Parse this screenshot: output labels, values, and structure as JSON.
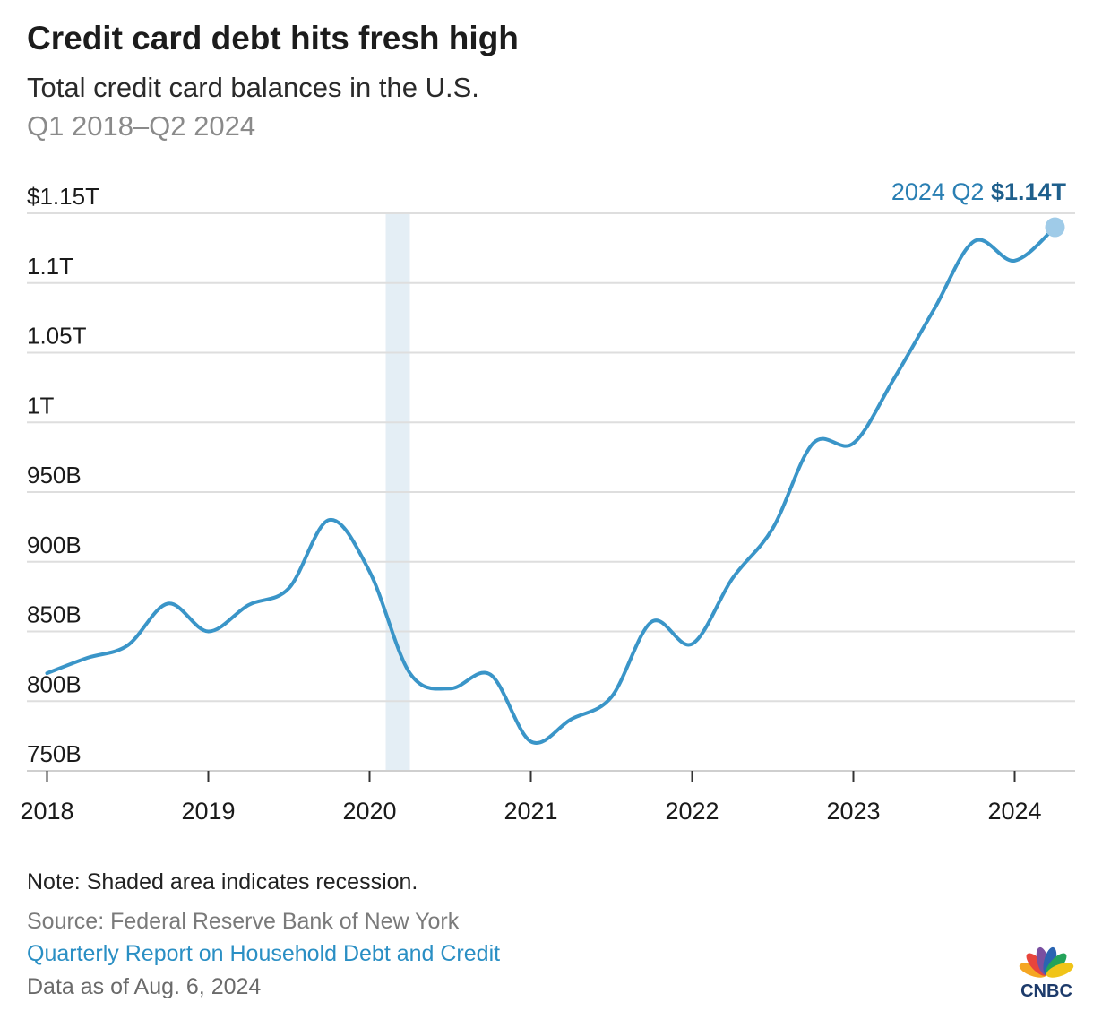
{
  "header": {
    "title": "Credit card debt hits fresh high",
    "subtitle": "Total credit card balances in the U.S.",
    "period": "Q1 2018–Q2 2024"
  },
  "chart_data": {
    "type": "line",
    "title": "Credit card debt hits fresh high",
    "subtitle": "Total credit card balances in the U.S.",
    "xlabel": "",
    "ylabel": "",
    "ylim": [
      750,
      1150
    ],
    "y_unit": "billions of dollars",
    "yticks": [
      {
        "value": 750,
        "label": "750B"
      },
      {
        "value": 800,
        "label": "800B"
      },
      {
        "value": 850,
        "label": "850B"
      },
      {
        "value": 900,
        "label": "900B"
      },
      {
        "value": 950,
        "label": "950B"
      },
      {
        "value": 1000,
        "label": "1T"
      },
      {
        "value": 1050,
        "label": "1.05T"
      },
      {
        "value": 1100,
        "label": "1.1T"
      },
      {
        "value": 1150,
        "label": "$1.15T"
      }
    ],
    "xlim": [
      2017.875,
      2024.375
    ],
    "xticks": [
      {
        "value": 2018,
        "label": "2018"
      },
      {
        "value": 2019,
        "label": "2019"
      },
      {
        "value": 2020,
        "label": "2020"
      },
      {
        "value": 2021,
        "label": "2021"
      },
      {
        "value": 2022,
        "label": "2022"
      },
      {
        "value": 2023,
        "label": "2023"
      },
      {
        "value": 2024,
        "label": "2024"
      }
    ],
    "recession": {
      "start": 2020.1,
      "end": 2020.25
    },
    "grid": true,
    "line_color": "#3a95c8",
    "recession_color": "#e4eef5",
    "highlight_color": "#9fcbe8",
    "series": [
      {
        "x": [
          "Q1 2018",
          "Q2 2018",
          "Q3 2018",
          "Q4 2018",
          "Q1 2019",
          "Q2 2019",
          "Q3 2019",
          "Q4 2019",
          "Q1 2020",
          "Q2 2020",
          "Q3 2020",
          "Q4 2020",
          "Q1 2021",
          "Q2 2021",
          "Q3 2021",
          "Q4 2021",
          "Q1 2022",
          "Q2 2022",
          "Q3 2022",
          "Q4 2022",
          "Q1 2023",
          "Q2 2023",
          "Q3 2023",
          "Q4 2023",
          "Q1 2024",
          "Q2 2024"
        ],
        "values": [
          820,
          831,
          840,
          870,
          850,
          869,
          881,
          930,
          893,
          820,
          809,
          819,
          771,
          787,
          803,
          857,
          841,
          888,
          924,
          985,
          985,
          1031,
          1081,
          1130,
          1116,
          1140
        ]
      }
    ],
    "annotation": {
      "label": "2024 Q2",
      "value_label": "$1.14T"
    }
  },
  "footer": {
    "note": "Note: Shaded area indicates recession.",
    "source": "Source: Federal Reserve Bank of New York",
    "report_link": "Quarterly Report on Household Debt and Credit",
    "as_of": "Data as of Aug. 6, 2024"
  },
  "brand": {
    "logo_text": "CNBC",
    "logo_icon": "peacock-icon",
    "logo_colors": [
      "#f5a623",
      "#e8453c",
      "#7a4fa0",
      "#2a64b2",
      "#23a35a",
      "#f0c419"
    ]
  }
}
